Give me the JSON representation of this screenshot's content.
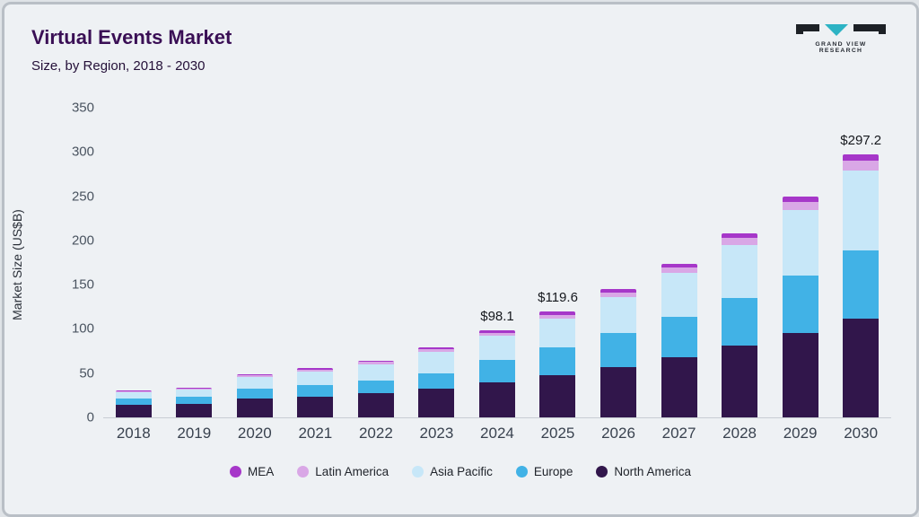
{
  "page": {
    "title": "Virtual Events Market",
    "subtitle": "Size, by Region, 2018 - 2030"
  },
  "logo": {
    "text": "GRAND VIEW RESEARCH",
    "accent_color": "#2db3c4",
    "dark_color": "#1d2126"
  },
  "chart_data": {
    "type": "bar",
    "stacked": true,
    "title": "Virtual Events Market Size, by Region, 2018 - 2030",
    "xlabel": "",
    "ylabel": "Market Size (US$B)",
    "ylim": [
      0,
      350
    ],
    "yticks": [
      0,
      50,
      100,
      150,
      200,
      250,
      300,
      350
    ],
    "grid": false,
    "legend_position": "bottom",
    "categories": [
      "2018",
      "2019",
      "2020",
      "2021",
      "2022",
      "2023",
      "2024",
      "2025",
      "2026",
      "2027",
      "2028",
      "2029",
      "2030"
    ],
    "series": [
      {
        "name": "North America",
        "color": "#31164b",
        "values": [
          14,
          15,
          21.5,
          23.5,
          27.5,
          32.5,
          40,
          48,
          57,
          68,
          81,
          95,
          112
        ]
      },
      {
        "name": "Europe",
        "color": "#41b2e6",
        "values": [
          7.5,
          8.5,
          11,
          13,
          14.5,
          17.5,
          24.5,
          31,
          38,
          46,
          54,
          65.5,
          77
        ]
      },
      {
        "name": "Asia Pacific",
        "color": "#c7e7f8",
        "values": [
          7,
          8,
          13,
          15.5,
          18,
          24,
          28,
          32.5,
          41,
          49,
          60,
          74,
          90
        ]
      },
      {
        "name": "Latin America",
        "color": "#d9a7e6",
        "values": [
          1,
          1.3,
          1.8,
          2.2,
          2.5,
          3,
          3.4,
          4.6,
          5.5,
          6.5,
          7.8,
          9,
          11
        ]
      },
      {
        "name": "MEA",
        "color": "#a637c9",
        "values": [
          0.8,
          1,
          1.2,
          1.5,
          1.7,
          2.1,
          2.2,
          3.5,
          3.8,
          4.3,
          5,
          6,
          7.2
        ]
      }
    ],
    "legend_order": [
      "MEA",
      "Latin America",
      "Asia Pacific",
      "Europe",
      "North America"
    ],
    "annotations": [
      {
        "category": "2024",
        "label": "$98.1"
      },
      {
        "category": "2025",
        "label": "$119.6"
      },
      {
        "category": "2030",
        "label": "$297.2"
      }
    ]
  }
}
